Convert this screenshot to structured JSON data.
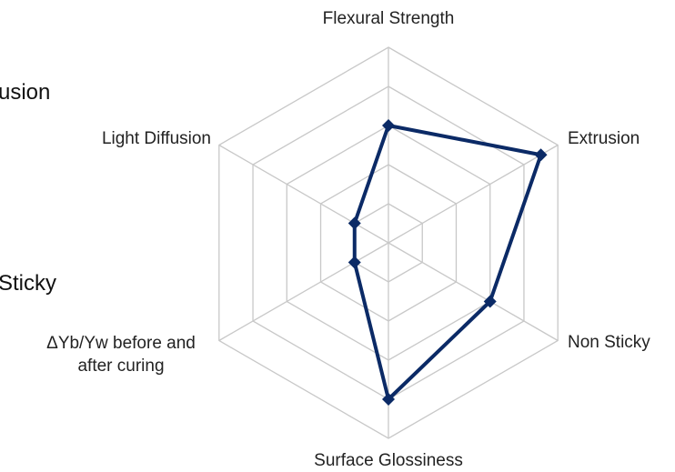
{
  "chart_data": {
    "type": "radar",
    "categories": [
      "Flexural Strength",
      "Extrusion",
      "Non Sticky",
      "Surface Glossiness",
      "ΔYb/Yw before and after curing",
      "Light Diffusion"
    ],
    "values": [
      3,
      4.5,
      3,
      4,
      1,
      1
    ],
    "color": "#0b2a66",
    "ylim": [
      0,
      5
    ],
    "yticks": [
      1,
      2,
      3,
      4,
      5
    ],
    "grid": true
  },
  "background_fragments": [
    "usion",
    "Sticky"
  ]
}
